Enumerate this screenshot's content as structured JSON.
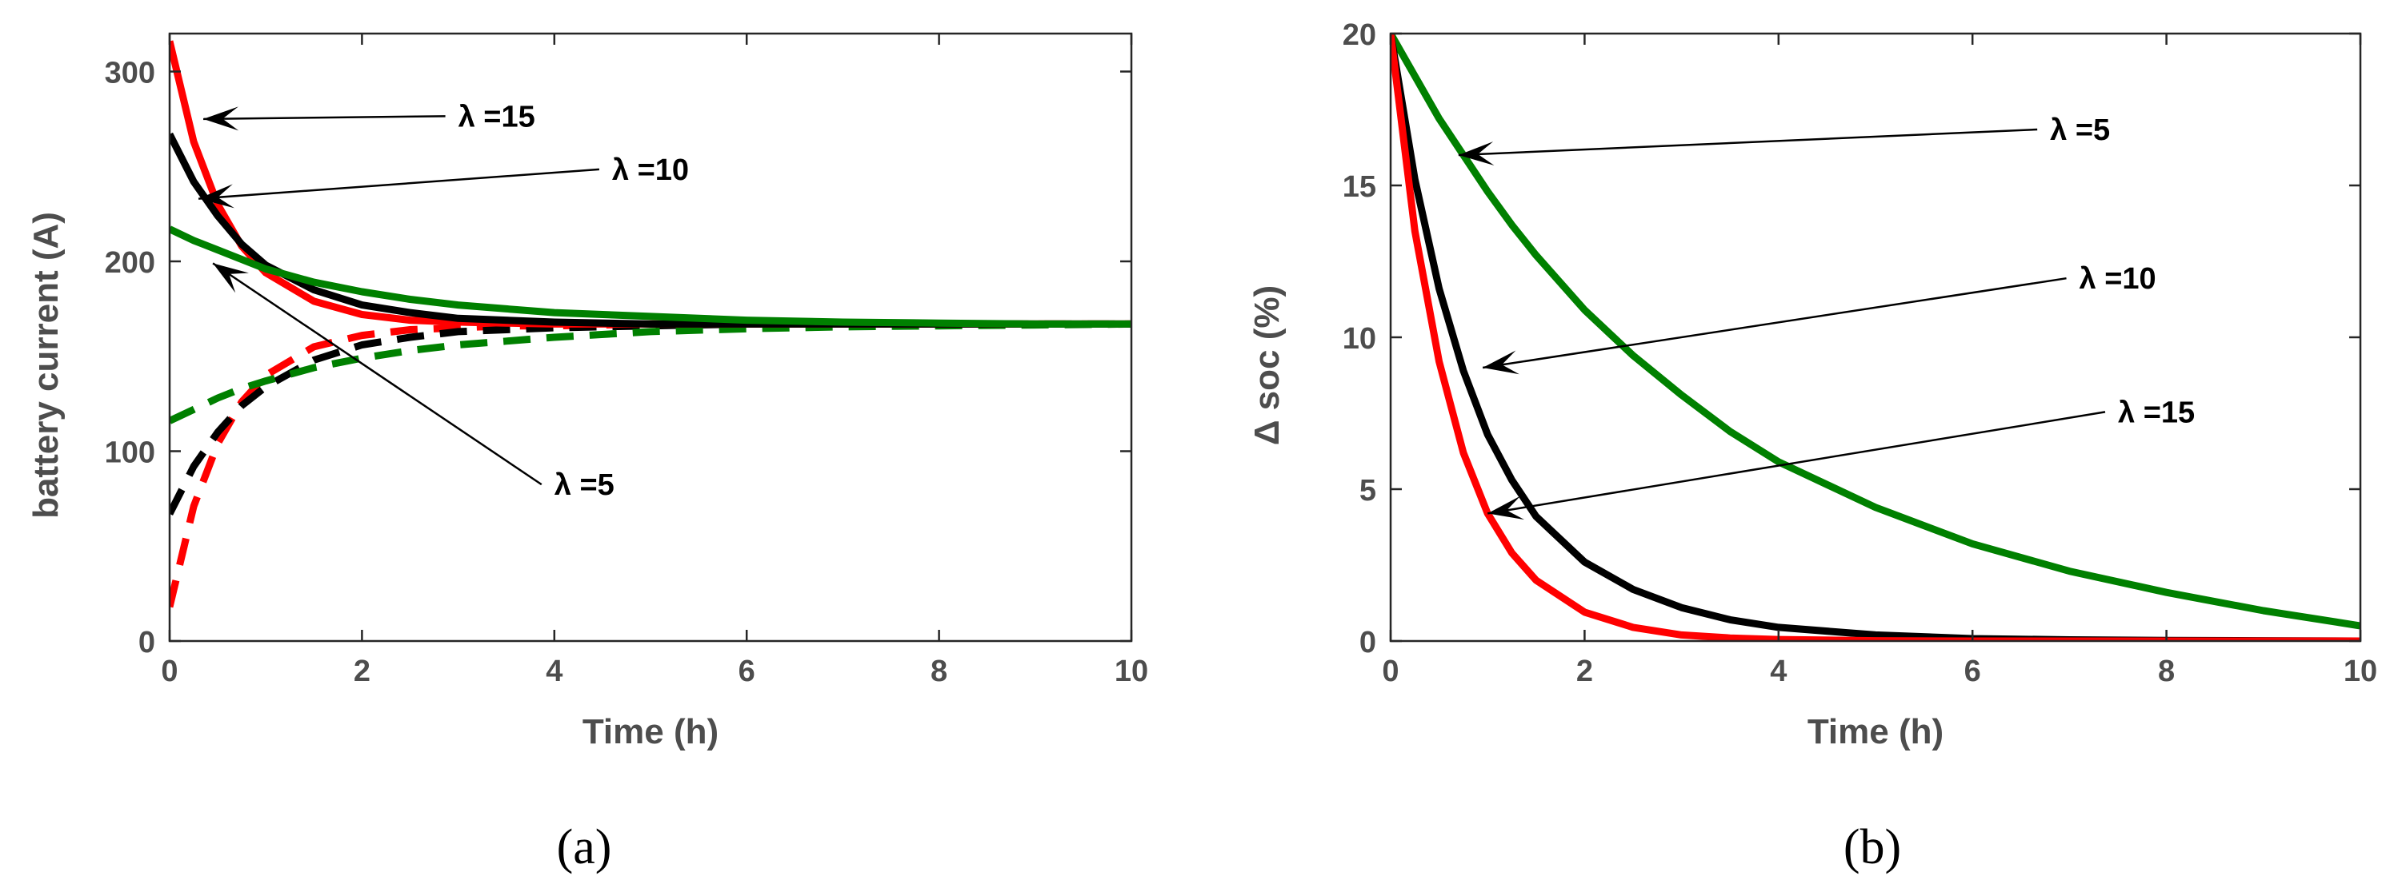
{
  "chart_data": [
    {
      "type": "line",
      "panel": "a",
      "caption": "(a)",
      "xlabel": "Time (h)",
      "ylabel": "battery current (A)",
      "xlim": [
        0,
        10
      ],
      "ylim": [
        0,
        320
      ],
      "xticks": [
        0,
        2,
        4,
        6,
        8,
        10
      ],
      "yticks": [
        0,
        100,
        200,
        300
      ],
      "grid": false,
      "x": [
        0,
        0.25,
        0.5,
        0.75,
        1,
        1.5,
        2,
        2.5,
        3,
        3.5,
        4,
        5,
        6,
        7,
        8,
        9,
        10
      ],
      "series": [
        {
          "color": "#ff0000",
          "style": "solid",
          "values": [
            316,
            263,
            230,
            208,
            194,
            179,
            172,
            169,
            168,
            167.5,
            167,
            167,
            167,
            167,
            167,
            167,
            167
          ]
        },
        {
          "color": "#000000",
          "style": "solid",
          "values": [
            267,
            242,
            224,
            209,
            198,
            185,
            177,
            173,
            170,
            169,
            168,
            167,
            167,
            167,
            167,
            167,
            167
          ]
        },
        {
          "color": "#008000",
          "style": "solid",
          "values": [
            217,
            211,
            206,
            201,
            196,
            189,
            184,
            180,
            177,
            175,
            173,
            171,
            169,
            168,
            167.5,
            167,
            167
          ]
        },
        {
          "color": "#ff0000",
          "style": "dashed",
          "values": [
            18,
            71,
            104,
            126,
            140,
            155,
            161,
            164,
            165,
            166,
            166,
            167,
            167,
            167,
            167,
            167,
            167
          ]
        },
        {
          "color": "#000000",
          "style": "dashed",
          "values": [
            67,
            92,
            110,
            124,
            134,
            148,
            156,
            160,
            163,
            164,
            165,
            166,
            167,
            167,
            167,
            167,
            167
          ]
        },
        {
          "color": "#008000",
          "style": "dashed",
          "values": [
            116,
            122,
            128,
            133,
            137,
            144,
            149,
            153,
            156,
            158,
            160,
            163,
            164.5,
            165.5,
            166,
            166.5,
            167
          ]
        }
      ],
      "annotations": [
        {
          "text": "λ =15",
          "text_at": [
            3.0,
            271
          ],
          "arrow_to": [
            0.35,
            275
          ]
        },
        {
          "text": "λ =10",
          "text_at": [
            4.6,
            243
          ],
          "arrow_to": [
            0.3,
            233
          ]
        },
        {
          "text": "λ =5",
          "text_at": [
            4.0,
            77
          ],
          "arrow_to": [
            0.45,
            199
          ]
        }
      ]
    },
    {
      "type": "line",
      "panel": "b",
      "caption": "(b)",
      "xlabel": "Time (h)",
      "ylabel": "Δ soc (%)",
      "xlim": [
        0,
        10
      ],
      "ylim": [
        0,
        20
      ],
      "xticks": [
        0,
        2,
        4,
        6,
        8,
        10
      ],
      "yticks": [
        0,
        5,
        10,
        15,
        20
      ],
      "grid": false,
      "x": [
        0,
        0.25,
        0.5,
        0.75,
        1,
        1.25,
        1.5,
        2,
        2.5,
        3,
        3.5,
        4,
        5,
        6,
        7,
        8,
        9,
        10
      ],
      "series": [
        {
          "color": "#008000",
          "style": "solid",
          "values": [
            20,
            18.6,
            17.2,
            16.0,
            14.8,
            13.7,
            12.7,
            10.9,
            9.4,
            8.1,
            6.9,
            5.9,
            4.4,
            3.2,
            2.3,
            1.6,
            1.0,
            0.5
          ]
        },
        {
          "color": "#000000",
          "style": "solid",
          "values": [
            20,
            15.2,
            11.6,
            8.9,
            6.8,
            5.3,
            4.1,
            2.6,
            1.7,
            1.1,
            0.7,
            0.45,
            0.2,
            0.08,
            0.04,
            0.02,
            0.01,
            0
          ]
        },
        {
          "color": "#ff0000",
          "style": "solid",
          "values": [
            20,
            13.5,
            9.2,
            6.2,
            4.2,
            2.9,
            2.0,
            0.95,
            0.45,
            0.2,
            0.1,
            0.05,
            0.01,
            0,
            0,
            0,
            0,
            0
          ]
        }
      ],
      "annotations": [
        {
          "text": "λ =5",
          "text_at": [
            6.8,
            16.5
          ],
          "arrow_to": [
            0.7,
            16.0
          ]
        },
        {
          "text": "λ =10",
          "text_at": [
            7.1,
            11.6
          ],
          "arrow_to": [
            0.95,
            9.0
          ]
        },
        {
          "text": "λ =15",
          "text_at": [
            7.5,
            7.2
          ],
          "arrow_to": [
            1.0,
            4.2
          ]
        }
      ]
    }
  ]
}
